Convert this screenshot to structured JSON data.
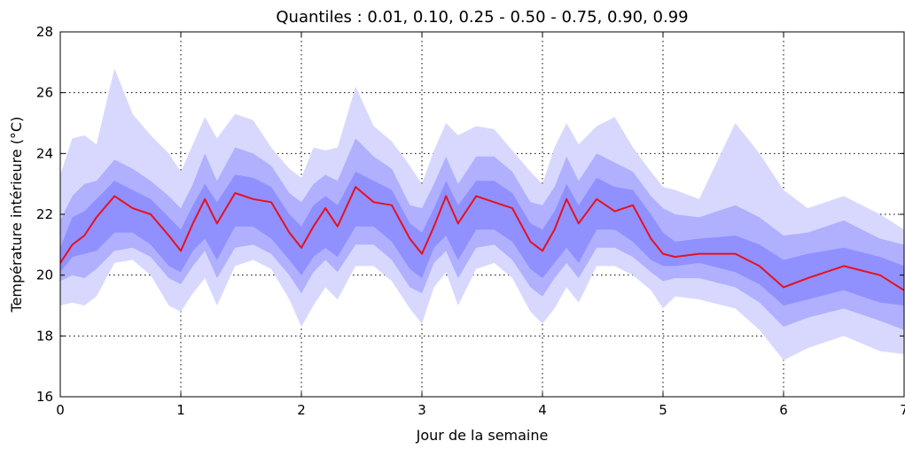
{
  "chart_data": {
    "type": "area",
    "title": "Quantiles : 0.01, 0.10, 0.25 - 0.50 - 0.75, 0.90, 0.99",
    "xlabel": "Jour de la semaine",
    "ylabel": "Température intérieure (°C)",
    "xlim": [
      0,
      7
    ],
    "ylim": [
      16,
      28
    ],
    "x_ticks": [
      "0",
      "1",
      "2",
      "3",
      "4",
      "5",
      "6",
      "7"
    ],
    "y_ticks": [
      "16",
      "18",
      "20",
      "22",
      "24",
      "26",
      "28"
    ],
    "grid": true,
    "band_colors": [
      "#d8d8ff",
      "#b0b0ff",
      "#9090ff"
    ],
    "median_color": "#e8101c",
    "x": [
      0,
      0.1,
      0.2,
      0.3,
      0.45,
      0.6,
      0.75,
      0.9,
      1.0,
      1.1,
      1.2,
      1.3,
      1.45,
      1.6,
      1.75,
      1.9,
      2.0,
      2.1,
      2.2,
      2.3,
      2.45,
      2.6,
      2.75,
      2.9,
      3.0,
      3.1,
      3.2,
      3.3,
      3.45,
      3.6,
      3.75,
      3.9,
      4.0,
      4.1,
      4.2,
      4.3,
      4.45,
      4.6,
      4.75,
      4.9,
      5.0,
      5.1,
      5.3,
      5.6,
      5.8,
      6.0,
      6.2,
      6.5,
      6.8,
      7.0
    ],
    "series": [
      {
        "values": [
          19.0,
          19.1,
          19.0,
          19.3,
          20.4,
          20.5,
          20.0,
          19.0,
          18.8,
          19.4,
          19.9,
          19.0,
          20.3,
          20.5,
          20.2,
          19.2,
          18.3,
          19.0,
          19.6,
          19.2,
          20.3,
          20.3,
          19.8,
          18.9,
          18.4,
          19.6,
          20.1,
          19.0,
          20.2,
          20.4,
          19.9,
          18.8,
          18.4,
          18.9,
          19.6,
          19.1,
          20.3,
          20.3,
          20.0,
          19.5,
          18.9,
          19.3,
          19.2,
          18.9,
          18.2,
          17.2,
          17.6,
          18.0,
          17.5,
          17.4
        ]
      },
      {
        "values": [
          19.8,
          20.0,
          19.9,
          20.2,
          20.8,
          20.9,
          20.6,
          19.9,
          19.7,
          20.3,
          20.8,
          19.9,
          20.9,
          21.0,
          20.7,
          20.0,
          19.4,
          20.1,
          20.5,
          20.1,
          21.0,
          21.0,
          20.5,
          19.6,
          19.4,
          20.4,
          20.8,
          19.9,
          20.9,
          21.0,
          20.5,
          19.6,
          19.3,
          19.9,
          20.4,
          19.9,
          20.9,
          20.9,
          20.6,
          20.1,
          19.8,
          19.9,
          19.9,
          19.6,
          19.1,
          18.3,
          18.6,
          18.9,
          18.5,
          18.2
        ]
      },
      {
        "values": [
          20.1,
          20.6,
          20.7,
          20.8,
          21.4,
          21.4,
          21.0,
          20.3,
          20.1,
          20.8,
          21.2,
          20.5,
          21.6,
          21.6,
          21.2,
          20.5,
          20.0,
          20.6,
          20.9,
          20.6,
          21.6,
          21.6,
          21.1,
          20.2,
          19.9,
          20.9,
          21.3,
          20.5,
          21.5,
          21.5,
          21.1,
          20.2,
          19.9,
          20.4,
          20.9,
          20.4,
          21.5,
          21.5,
          21.1,
          20.5,
          20.3,
          20.3,
          20.4,
          20.1,
          19.7,
          19.0,
          19.2,
          19.5,
          19.1,
          19.0
        ]
      },
      {
        "name": "0.50",
        "values": [
          20.4,
          21.0,
          21.3,
          21.9,
          22.6,
          22.2,
          22.0,
          21.3,
          20.8,
          21.7,
          22.5,
          21.7,
          22.7,
          22.5,
          22.4,
          21.4,
          20.9,
          21.6,
          22.2,
          21.6,
          22.9,
          22.4,
          22.3,
          21.2,
          20.7,
          21.6,
          22.6,
          21.7,
          22.6,
          22.4,
          22.2,
          21.1,
          20.8,
          21.5,
          22.5,
          21.7,
          22.5,
          22.1,
          22.3,
          21.2,
          20.7,
          20.6,
          20.7,
          20.7,
          20.3,
          19.6,
          19.9,
          20.3,
          20.0,
          19.5
        ]
      },
      {
        "values": [
          20.9,
          21.9,
          22.1,
          22.5,
          23.1,
          22.8,
          22.5,
          21.9,
          21.5,
          22.3,
          23.0,
          22.4,
          23.3,
          23.2,
          22.9,
          22.0,
          21.6,
          22.3,
          22.6,
          22.3,
          23.4,
          23.1,
          22.8,
          21.7,
          21.4,
          22.2,
          23.1,
          22.3,
          23.1,
          23.1,
          22.7,
          21.7,
          21.5,
          22.1,
          23.0,
          22.3,
          23.2,
          22.9,
          22.8,
          22.0,
          21.4,
          21.1,
          21.2,
          21.3,
          21.0,
          20.5,
          20.7,
          20.9,
          20.6,
          20.3
        ]
      },
      {
        "values": [
          21.8,
          22.6,
          23.0,
          23.1,
          23.8,
          23.5,
          23.1,
          22.6,
          22.2,
          23.0,
          24.0,
          23.1,
          24.2,
          24.0,
          23.6,
          22.7,
          22.4,
          23.0,
          23.3,
          23.1,
          24.5,
          23.9,
          23.5,
          22.3,
          22.2,
          23.0,
          23.9,
          23.0,
          23.9,
          23.9,
          23.4,
          22.4,
          22.3,
          22.9,
          23.9,
          23.1,
          24.0,
          23.7,
          23.4,
          22.6,
          22.2,
          22.0,
          21.9,
          22.3,
          21.9,
          21.3,
          21.4,
          21.8,
          21.2,
          21.0
        ]
      },
      {
        "values": [
          23.3,
          24.5,
          24.6,
          24.3,
          26.8,
          25.3,
          24.6,
          24.0,
          23.4,
          24.3,
          25.2,
          24.5,
          25.3,
          25.1,
          24.2,
          23.5,
          23.2,
          24.2,
          24.1,
          24.2,
          26.2,
          24.9,
          24.4,
          23.6,
          23.0,
          24.1,
          25.0,
          24.6,
          24.9,
          24.8,
          24.1,
          23.4,
          23.0,
          24.2,
          25.0,
          24.3,
          24.9,
          25.2,
          24.2,
          23.4,
          22.9,
          22.8,
          22.5,
          25.0,
          24.0,
          22.8,
          22.2,
          22.6,
          22.0,
          21.5
        ]
      }
    ]
  }
}
